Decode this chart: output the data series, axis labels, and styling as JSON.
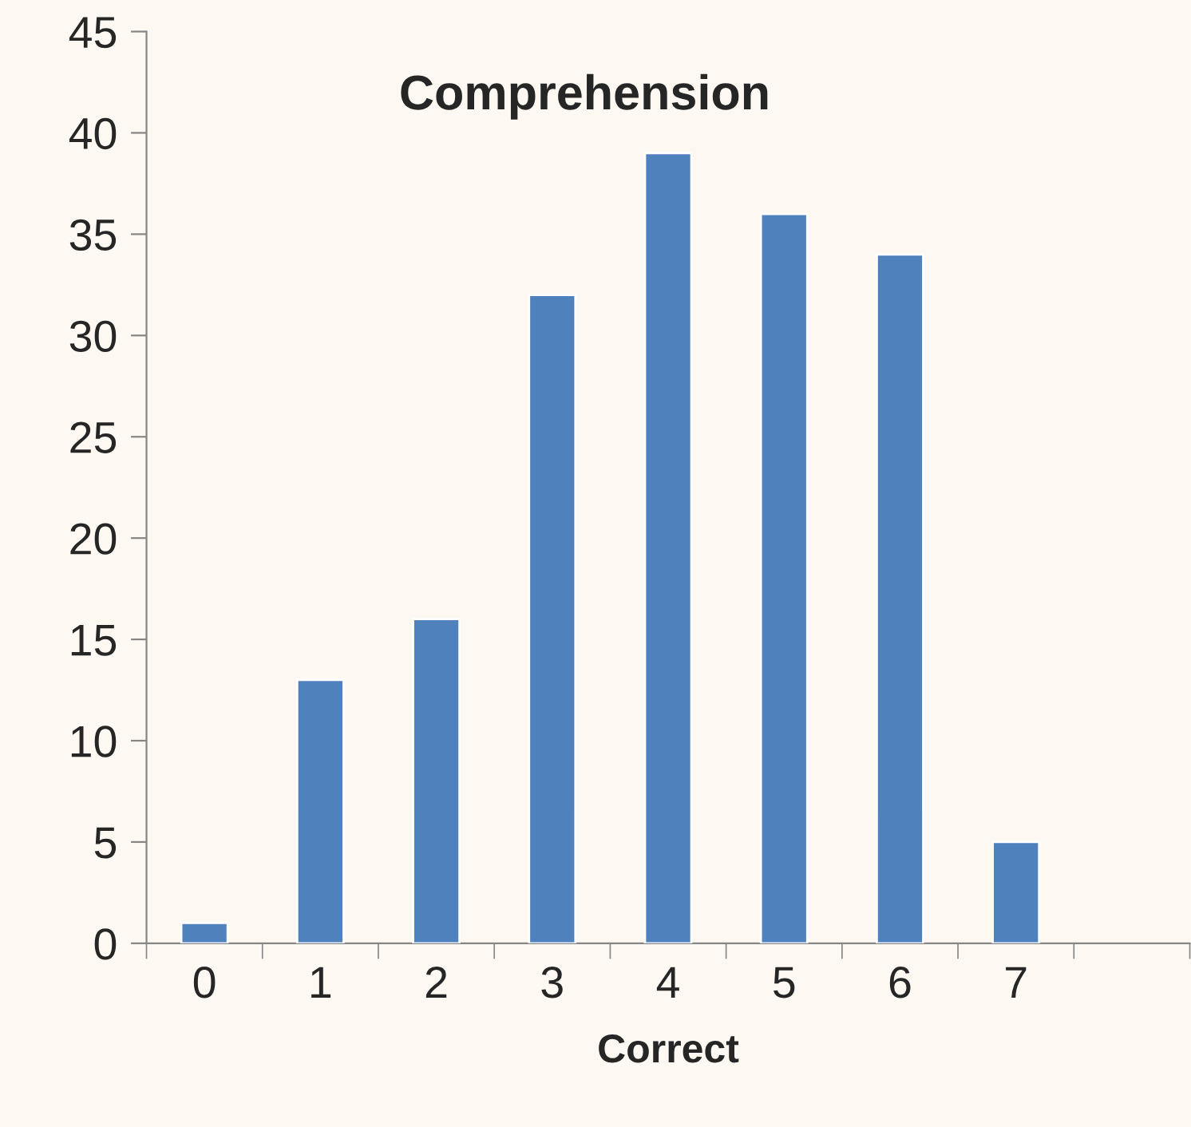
{
  "chart_data": {
    "type": "bar",
    "title": "Comprehension",
    "xlabel": "Correct",
    "categories": [
      "0",
      "1",
      "2",
      "3",
      "4",
      "5",
      "6",
      "7",
      null
    ],
    "values": [
      1,
      13,
      16,
      32,
      39,
      36,
      34,
      5,
      null
    ],
    "color": "#4f81bd",
    "ylim": [
      0,
      45
    ],
    "yticks": [
      0,
      5,
      10,
      15,
      20,
      25,
      30,
      35,
      40,
      45
    ],
    "grid": false,
    "legend": false
  }
}
